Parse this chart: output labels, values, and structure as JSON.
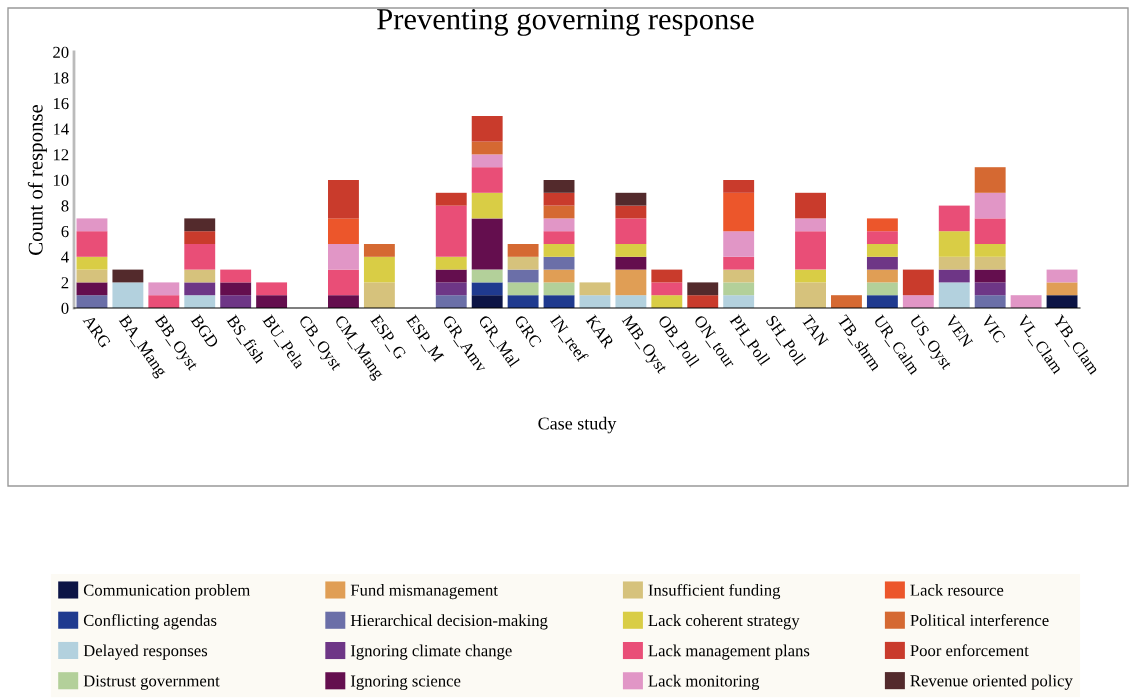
{
  "chart_data": {
    "type": "bar",
    "title": "Preventing governing response",
    "xlabel": "Case study",
    "ylabel": "Count of response",
    "stacked": true,
    "legend": "bottom",
    "grid": false,
    "categories": [
      "ARG",
      "BA_Mang",
      "BB_Oyst",
      "BGD",
      "BS_fish",
      "BU_Pela",
      "CB_Oyst",
      "CM_Mang",
      "ESP_G",
      "ESP_M",
      "GR_Amv",
      "GR_Mal",
      "GRC",
      "IN_reef",
      "KAR",
      "MB_Oyst",
      "OB_Poll",
      "ON_tour",
      "PH_Poll",
      "SH_Poll",
      "TAN",
      "TB_shrm",
      "UR_Calm",
      "US_Oyst",
      "VEN",
      "VIC",
      "VL_Clam",
      "YB_Clam"
    ],
    "ylim": [
      0,
      20
    ],
    "yticks": [
      0,
      2,
      4,
      6,
      8,
      10,
      12,
      14,
      16,
      18,
      20
    ],
    "series": [
      {
        "name": "Communication problem",
        "color": "#0c1445",
        "values": [
          0,
          0,
          0,
          0,
          0,
          0,
          0,
          0,
          0,
          0,
          0,
          1,
          0,
          0,
          0,
          0,
          0,
          0,
          0,
          0,
          0,
          0,
          0,
          0,
          0,
          0,
          0,
          1
        ]
      },
      {
        "name": "Conflicting agendas",
        "color": "#1f3a8f",
        "values": [
          0,
          0,
          0,
          0,
          0,
          0,
          0,
          0,
          0,
          0,
          0,
          1,
          1,
          1,
          0,
          0,
          0,
          0,
          0,
          0,
          0,
          0,
          1,
          0,
          0,
          0,
          0,
          0
        ]
      },
      {
        "name": "Delayed responses",
        "color": "#b3d1de",
        "values": [
          0,
          2,
          0,
          1,
          0,
          0,
          0,
          0,
          0,
          0,
          0,
          0,
          0,
          0,
          1,
          1,
          0,
          0,
          1,
          0,
          0,
          0,
          0,
          0,
          2,
          0,
          0,
          0
        ]
      },
      {
        "name": "Distrust government",
        "color": "#b3d09a",
        "values": [
          0,
          0,
          0,
          0,
          0,
          0,
          0,
          0,
          0,
          0,
          0,
          1,
          1,
          1,
          0,
          0,
          0,
          0,
          1,
          0,
          0,
          0,
          1,
          0,
          0,
          0,
          0,
          0
        ]
      },
      {
        "name": "Fund mismanagement",
        "color": "#e09e55",
        "values": [
          0,
          0,
          0,
          0,
          0,
          0,
          0,
          0,
          0,
          0,
          0,
          0,
          0,
          1,
          0,
          2,
          0,
          0,
          0,
          0,
          0,
          0,
          1,
          0,
          0,
          0,
          0,
          1
        ]
      },
      {
        "name": "Hierarchical decision-making",
        "color": "#6b6fa8",
        "values": [
          1,
          0,
          0,
          0,
          0,
          0,
          0,
          0,
          0,
          0,
          1,
          0,
          1,
          1,
          0,
          0,
          0,
          0,
          0,
          0,
          0,
          0,
          0,
          0,
          0,
          1,
          0,
          0
        ]
      },
      {
        "name": "Ignoring climate change",
        "color": "#6e3686",
        "values": [
          0,
          0,
          0,
          1,
          1,
          0,
          0,
          0,
          0,
          0,
          1,
          0,
          0,
          0,
          0,
          0,
          0,
          0,
          0,
          0,
          0,
          0,
          1,
          0,
          1,
          1,
          0,
          0
        ]
      },
      {
        "name": "Ignoring science",
        "color": "#640e4e",
        "values": [
          1,
          0,
          0,
          0,
          1,
          1,
          0,
          1,
          0,
          0,
          1,
          4,
          0,
          0,
          0,
          1,
          0,
          0,
          0,
          0,
          0,
          0,
          0,
          0,
          0,
          1,
          0,
          0
        ]
      },
      {
        "name": "Insufficient funding",
        "color": "#d6c27c",
        "values": [
          1,
          0,
          0,
          1,
          0,
          0,
          0,
          0,
          2,
          0,
          0,
          0,
          1,
          0,
          1,
          0,
          0,
          0,
          1,
          0,
          2,
          0,
          0,
          0,
          1,
          1,
          0,
          0
        ]
      },
      {
        "name": "Lack coherent strategy",
        "color": "#d9cd45",
        "values": [
          1,
          0,
          0,
          0,
          0,
          0,
          0,
          0,
          2,
          0,
          1,
          2,
          0,
          1,
          0,
          1,
          1,
          0,
          0,
          0,
          1,
          0,
          1,
          0,
          2,
          1,
          0,
          0
        ]
      },
      {
        "name": "Lack management plans",
        "color": "#e94e77",
        "values": [
          2,
          0,
          1,
          2,
          1,
          1,
          0,
          2,
          0,
          0,
          4,
          2,
          0,
          1,
          0,
          2,
          1,
          0,
          1,
          0,
          3,
          0,
          1,
          0,
          2,
          2,
          0,
          0
        ]
      },
      {
        "name": "Lack monitoring",
        "color": "#e196c6",
        "values": [
          1,
          0,
          1,
          0,
          0,
          0,
          0,
          2,
          0,
          0,
          0,
          1,
          0,
          1,
          0,
          0,
          0,
          0,
          2,
          0,
          1,
          0,
          0,
          1,
          0,
          2,
          1,
          1
        ]
      },
      {
        "name": "Lack resource",
        "color": "#ec562b",
        "values": [
          0,
          0,
          0,
          0,
          0,
          0,
          0,
          2,
          0,
          0,
          0,
          0,
          0,
          0,
          0,
          0,
          0,
          0,
          3,
          0,
          0,
          0,
          1,
          0,
          0,
          0,
          0,
          0
        ]
      },
      {
        "name": "Political interference",
        "color": "#d56932",
        "values": [
          0,
          0,
          0,
          0,
          0,
          0,
          0,
          0,
          1,
          0,
          0,
          1,
          1,
          1,
          0,
          0,
          0,
          0,
          0,
          0,
          0,
          1,
          0,
          0,
          0,
          2,
          0,
          0
        ]
      },
      {
        "name": "Poor enforcement",
        "color": "#c93b2c",
        "values": [
          0,
          0,
          0,
          1,
          0,
          0,
          0,
          3,
          0,
          0,
          1,
          2,
          0,
          1,
          0,
          1,
          1,
          1,
          1,
          0,
          2,
          0,
          0,
          2,
          0,
          0,
          0,
          0
        ]
      },
      {
        "name": "Revenue oriented policy",
        "color": "#532a2c",
        "values": [
          0,
          1,
          0,
          1,
          0,
          0,
          0,
          0,
          0,
          0,
          0,
          0,
          0,
          1,
          0,
          1,
          0,
          1,
          0,
          0,
          0,
          0,
          0,
          0,
          0,
          0,
          0,
          0
        ]
      }
    ]
  }
}
